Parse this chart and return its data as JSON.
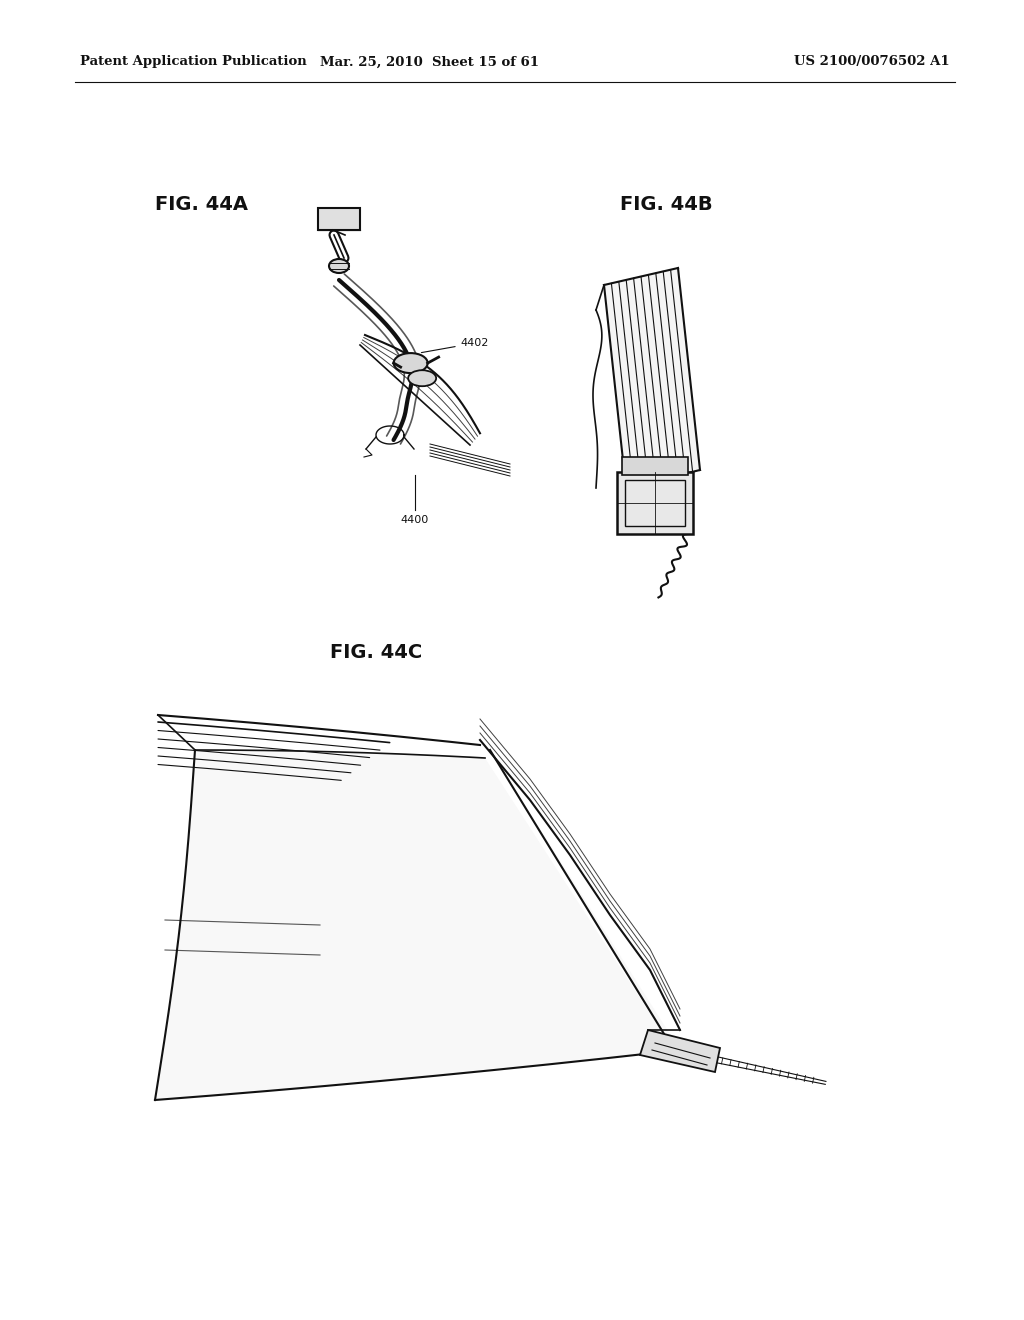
{
  "bg_color": "#ffffff",
  "header_left": "Patent Application Publication",
  "header_center": "Mar. 25, 2010  Sheet 15 of 61",
  "header_right": "US 2100/0076502 A1",
  "fig_44a_label": "FIG. 44A",
  "fig_44b_label": "FIG. 44B",
  "fig_44c_label": "FIG. 44C",
  "ref_4402": "4402",
  "ref_4400": "4400",
  "text_color": "#111111",
  "line_color": "#111111",
  "fontsize_header": 9.5,
  "fontsize_fig": 14,
  "fontsize_ref": 8
}
